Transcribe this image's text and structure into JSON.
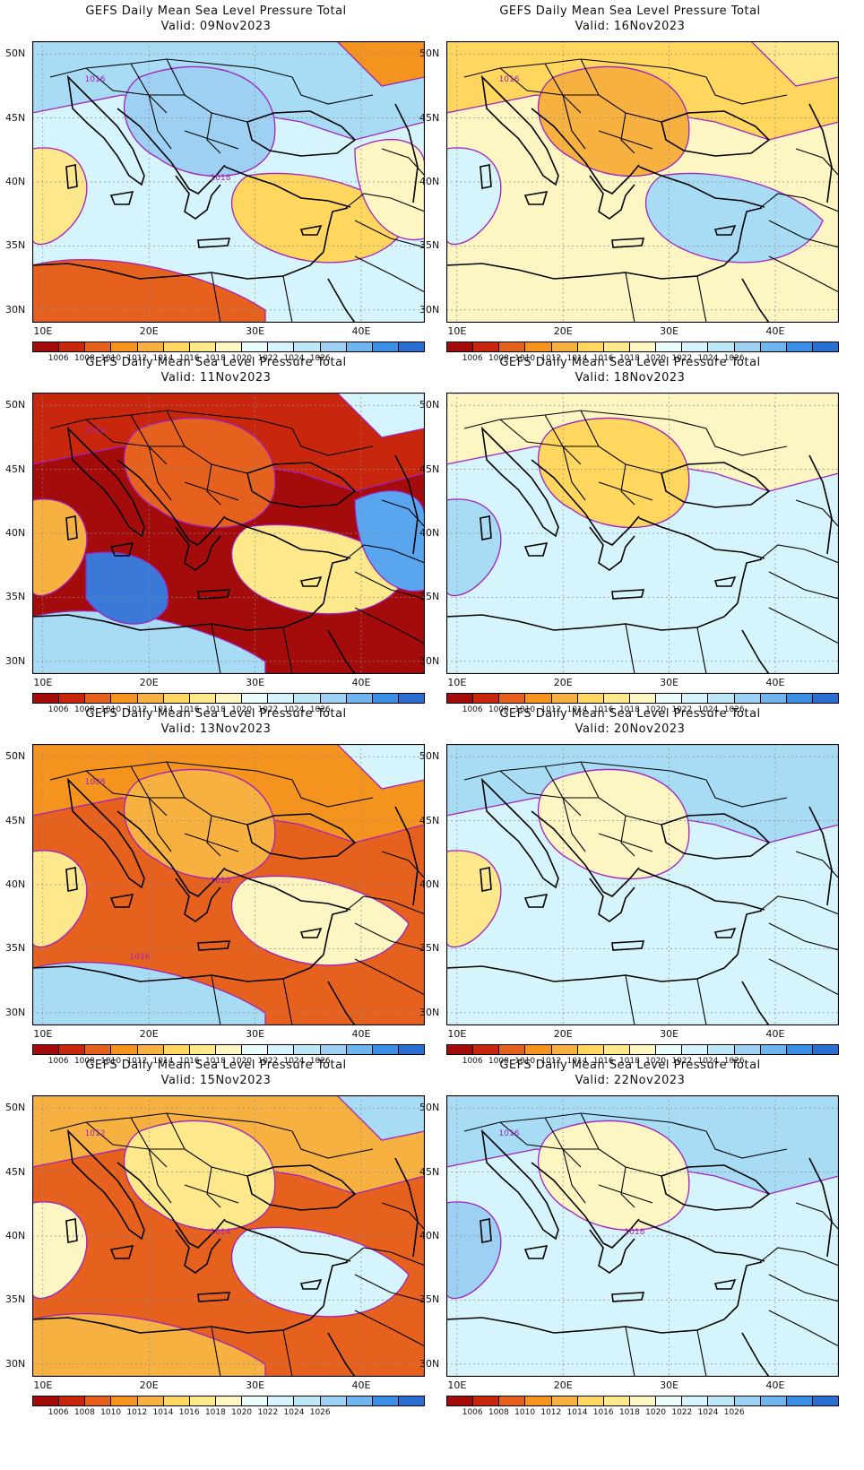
{
  "panels": [
    {
      "title": "GEFS Daily Mean Sea Level Pressure Total",
      "valid": "Valid: 09Nov2023",
      "contour_labels": [
        "1016",
        "1018"
      ],
      "fills": [
        "#d6f4fb",
        "#a8dcf5",
        "#9dd0f3",
        "#fde98c",
        "#ffd75f",
        "#f5931f",
        "#e7611e",
        "#fdf5c2"
      ]
    },
    {
      "title": "GEFS Daily Mean Sea Level Pressure Total",
      "valid": "Valid: 16Nov2023",
      "contour_labels": [
        "1016"
      ],
      "fills": [
        "#fdf5c2",
        "#ffd75f",
        "#f6b141",
        "#d6f4fb",
        "#a8dcf5",
        "#fde98c"
      ]
    },
    {
      "title": "GEFS Daily Mean Sea Level Pressure Total",
      "valid": "Valid: 11Nov2023",
      "contour_labels": [
        "1010"
      ],
      "fills": [
        "#a40b0b",
        "#c8270e",
        "#e7611e",
        "#f6b141",
        "#fde98c",
        "#d6f4fb",
        "#a8dcf5",
        "#5aa6ee",
        "#3a79d8"
      ]
    },
    {
      "title": "GEFS Daily Mean Sea Level Pressure Total",
      "valid": "Valid: 18Nov2023",
      "contour_labels": [],
      "fills": [
        "#d6f4fb",
        "#fdf5c2",
        "#ffd75f",
        "#a8dcf5"
      ]
    },
    {
      "title": "GEFS Daily Mean Sea Level Pressure Total",
      "valid": "Valid: 13Nov2023",
      "contour_labels": [
        "1008",
        "1010",
        "1016"
      ],
      "fills": [
        "#e7611e",
        "#f5931f",
        "#f6b141",
        "#fde98c",
        "#fdf5c2",
        "#d6f4fb",
        "#a8dcf5"
      ]
    },
    {
      "title": "GEFS Daily Mean Sea Level Pressure Total",
      "valid": "Valid: 20Nov2023",
      "contour_labels": [],
      "fills": [
        "#d6f4fb",
        "#a8dcf5",
        "#fdf5c2",
        "#fde98c"
      ]
    },
    {
      "title": "GEFS Daily Mean Sea Level Pressure Total",
      "valid": "Valid: 15Nov2023",
      "contour_labels": [
        "1012",
        "1014"
      ],
      "fills": [
        "#e7611e",
        "#f6b141",
        "#fde98c",
        "#fdf5c2",
        "#d6f4fb",
        "#a8dcf5",
        "#f6b141"
      ]
    },
    {
      "title": "GEFS Daily Mean Sea Level Pressure Total",
      "valid": "Valid: 22Nov2023",
      "contour_labels": [
        "1016",
        "1018"
      ],
      "fills": [
        "#d6f4fb",
        "#a8dcf5",
        "#fdf5c2",
        "#9dd0f3"
      ]
    }
  ],
  "axes": {
    "lat_labels": [
      "50N",
      "45N",
      "40N",
      "35N",
      "30N"
    ],
    "lon_labels": [
      "10E",
      "20E",
      "30E",
      "40E"
    ],
    "lat_range": [
      29,
      51
    ],
    "lon_range": [
      9,
      46
    ]
  },
  "colorbar": {
    "colors": [
      "#a40b0b",
      "#c8270e",
      "#e7611e",
      "#f5931f",
      "#f6b141",
      "#ffd75f",
      "#fde98c",
      "#fdf5c2",
      "#ebfdfd",
      "#d6f4fb",
      "#bde8f7",
      "#9dd0f3",
      "#6fb6f0",
      "#3a8fe4",
      "#2a6fd2"
    ],
    "labels": [
      "1006",
      "1008",
      "1010",
      "1012",
      "1014",
      "1016",
      "1018",
      "1020",
      "1022",
      "1024",
      "1026"
    ]
  },
  "colors": {
    "contour": "#a020c0",
    "coast": "#000000",
    "grid": "#8a8a8a"
  }
}
